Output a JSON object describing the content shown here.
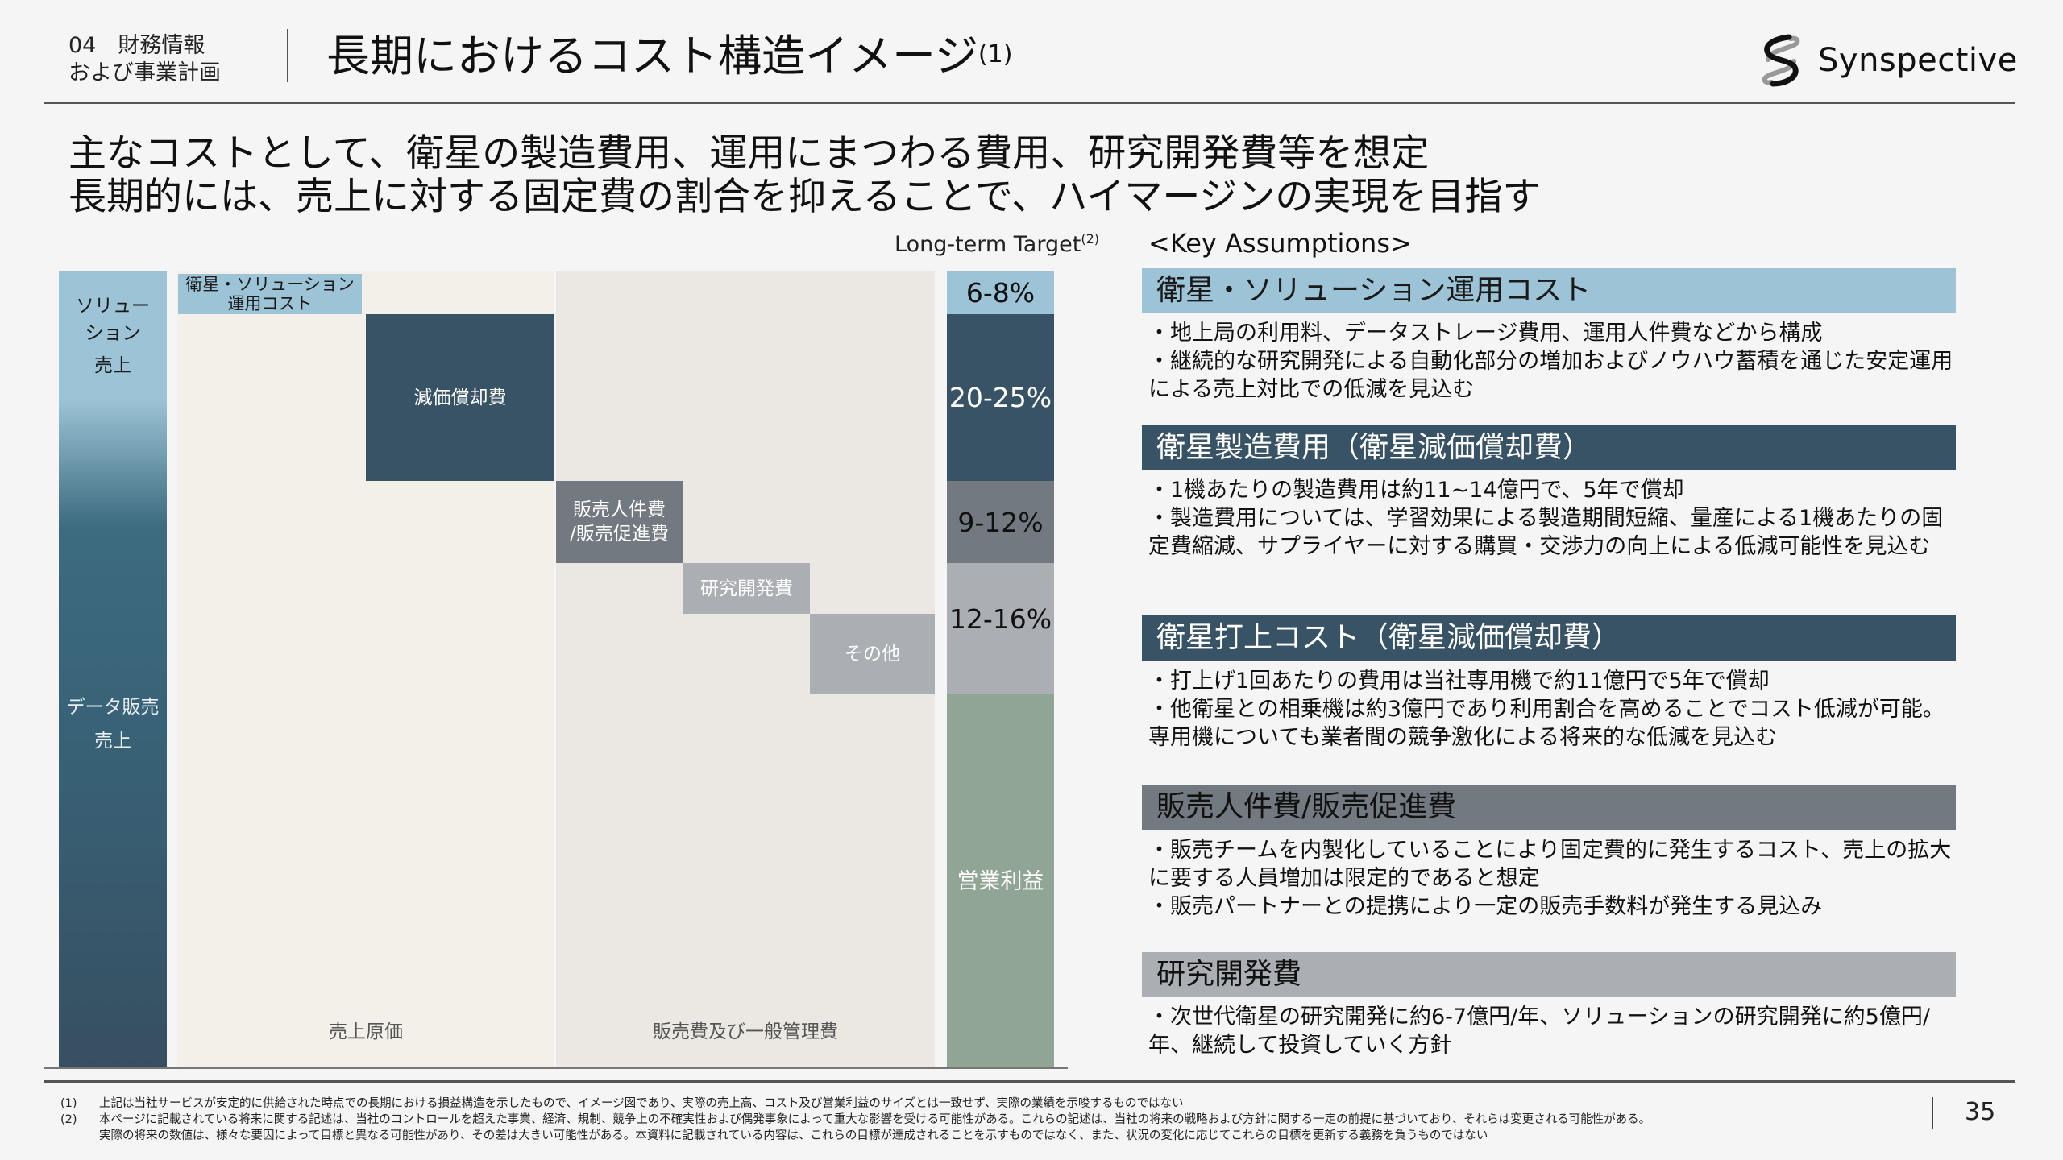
{
  "header": {
    "section_line1": "04　財務情報",
    "section_line2": "および事業計画",
    "title": "長期におけるコスト構造イメージ",
    "title_note": "(1)",
    "logo_text": "Synspective"
  },
  "headline": {
    "line1": "主なコストとして、衛星の製造費用、運用にまつわる費用、研究開発費等を想定",
    "line2": "長期的には、売上に対する固定費の割合を抑えることで、ハイマージンの実現を目指す"
  },
  "chart": {
    "long_term_label": "Long-term Target",
    "long_term_note": "(2)",
    "revenue_bar": {
      "solution_line1": "ソリュー",
      "solution_line2": "ション",
      "solution_line3": "売上",
      "data_line1": "データ販売",
      "data_line2": "売上"
    },
    "areas": {
      "cogs": "売上原価",
      "sga": "販売費及び一般管理費"
    },
    "blocks": {
      "ops_line1": "衛星・ソリューション",
      "ops_line2": "運用コスト",
      "depreciation": "減価償却費",
      "sales_line1": "販売人件費",
      "sales_line2": "/販売促進費",
      "rnd": "研究開発費",
      "other": "その他"
    },
    "target_bar": [
      {
        "label": "6-8%",
        "color": "#9dc4d6"
      },
      {
        "label": "20-25%",
        "color": "#385266"
      },
      {
        "label": "9-12%",
        "color": "#737980"
      },
      {
        "label": "12-16%",
        "color": "#abaeb3"
      },
      {
        "label": "営業利益",
        "color": "#91a594"
      }
    ]
  },
  "assumptions": {
    "label": "<Key Assumptions>",
    "sections": [
      {
        "title": "衛星・ソリューション運用コスト",
        "color": "#9dc4d6",
        "bullets": [
          "・地上局の利用料、データストレージ費用、運用人件費などから構成",
          "・継続的な研究開発による自動化部分の増加およびノウハウ蓄積を通じた安定運用による売上対比での低減を見込む"
        ]
      },
      {
        "title": "衛星製造費用（衛星減価償却費）",
        "color": "#385266",
        "bullets": [
          "・1機あたりの製造費用は約11~14億円で、5年で償却",
          "・製造費用については、学習効果による製造期間短縮、量産による1機あたりの固定費縮減、サプライヤーに対する購買・交渉力の向上による低減可能性を見込む"
        ]
      },
      {
        "title": "衛星打上コスト（衛星減価償却費）",
        "color": "#385266",
        "bullets": [
          "・打上げ1回あたりの費用は当社専用機で約11億円で5年で償却",
          "・他衛星との相乗機は約3億円であり利用割合を高めることでコスト低減が可能。専用機についても業者間の競争激化による将来的な低減を見込む"
        ]
      },
      {
        "title": "販売人件費/販売促進費",
        "color": "#737980",
        "bullets": [
          "・販売チームを内製化していることにより固定費的に発生するコスト、売上の拡大に要する人員増加は限定的であると想定",
          "・販売パートナーとの提携により一定の販売手数料が発生する見込み"
        ]
      },
      {
        "title": "研究開発費",
        "color": "#abaeb3",
        "bullets": [
          "・次世代衛星の研究開発に約6-7億円/年、ソリューションの研究開発に約5億円/年、継続して投資していく方針"
        ]
      }
    ]
  },
  "footnotes": [
    {
      "num": "(1)",
      "lines": [
        "上記は当社サービスが安定的に供給された時点での長期における損益構造を示したもので、イメージ図であり、実際の売上高、コスト及び営業利益のサイズとは一致せず、実際の業績を示唆するものではない"
      ]
    },
    {
      "num": "(2)",
      "lines": [
        "本ページに記載されている将来に関する記述は、当社のコントロールを超えた事業、経済、規制、競争上の不確実性および偶発事象によって重大な影響を受ける可能性がある。これらの記述は、当社の将来の戦略および方針に関する一定の前提に基づいており、それらは変更される可能性がある。",
        "実際の将来の数値は、様々な要因によって目標と異なる可能性があり、その差は大きい可能性がある。本資料に記載されている内容は、これらの目標が達成されることを示すものではなく、また、状況の変化に応じてこれらの目標を更新する義務を負うものではない"
      ]
    }
  ],
  "page_number": "35"
}
